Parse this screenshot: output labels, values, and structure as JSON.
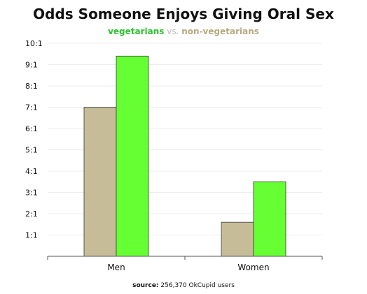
{
  "chart_data": {
    "type": "bar",
    "title": "Odds Someone Enjoys Giving Oral Sex",
    "subtitle": {
      "series_a": "vegetarians",
      "separator": "vs.",
      "series_b": "non-vegetarians"
    },
    "categories": [
      "Men",
      "Women"
    ],
    "series": [
      {
        "name": "non-vegetarians",
        "color": "#c6bd98",
        "values": [
          7.0,
          1.6
        ]
      },
      {
        "name": "vegetarians",
        "color": "#66ff33",
        "values": [
          9.4,
          3.5
        ]
      }
    ],
    "yticks": [
      "1:1",
      "2:1",
      "3:1",
      "4:1",
      "5:1",
      "6:1",
      "7:1",
      "8:1",
      "9:1",
      "10:1"
    ],
    "ylim": [
      0,
      10
    ],
    "grid": true,
    "xlabel": "",
    "ylabel": "",
    "source": {
      "label": "source:",
      "text": "256,370 OkCupid users"
    }
  }
}
